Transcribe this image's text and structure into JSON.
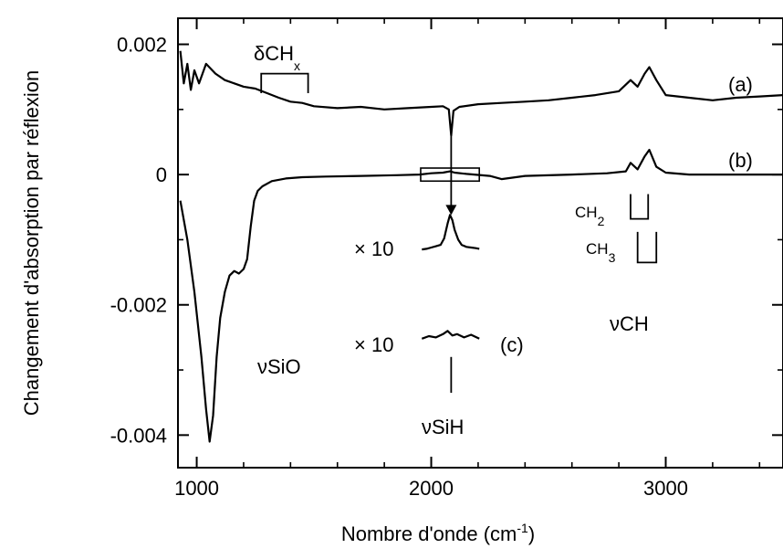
{
  "chart_data": {
    "type": "line",
    "xlabel": "Nombre d'onde (cm",
    "xlabel_sup": "-1",
    "xlabel_end": ")",
    "ylabel": "Changement d'absorption par réflexion",
    "xlim": [
      920,
      3500
    ],
    "ylim": [
      -0.0045,
      0.0024
    ],
    "xticks": [
      1000,
      2000,
      3000
    ],
    "xtick_labels": [
      "1000",
      "2000",
      "3000"
    ],
    "yticks": [
      0.002,
      0,
      -0.002,
      -0.004
    ],
    "ytick_labels": [
      "0.002",
      "0",
      "-0.002",
      "-0.004"
    ],
    "grid": false,
    "series": [
      {
        "name": "(a)",
        "x": [
          930,
          945,
          960,
          975,
          990,
          1010,
          1040,
          1080,
          1120,
          1160,
          1200,
          1250,
          1300,
          1350,
          1400,
          1450,
          1500,
          1600,
          1700,
          1800,
          1900,
          2000,
          2050,
          2075,
          2085,
          2095,
          2120,
          2200,
          2300,
          2400,
          2500,
          2600,
          2700,
          2800,
          2850,
          2880,
          2910,
          2930,
          2960,
          3000,
          3100,
          3200,
          3300,
          3400,
          3500
        ],
        "y": [
          0.0019,
          0.0014,
          0.0017,
          0.0013,
          0.0016,
          0.0014,
          0.0017,
          0.00155,
          0.00145,
          0.0014,
          0.00135,
          0.00132,
          0.00125,
          0.00118,
          0.00112,
          0.0011,
          0.00105,
          0.00102,
          0.00104,
          0.001,
          0.00102,
          0.00104,
          0.00105,
          0.001,
          0.0006,
          0.00098,
          0.00104,
          0.00108,
          0.0011,
          0.00112,
          0.00114,
          0.00118,
          0.00122,
          0.00128,
          0.00145,
          0.00135,
          0.00155,
          0.00165,
          0.00145,
          0.00122,
          0.00118,
          0.00114,
          0.00118,
          0.0012,
          0.00122
        ]
      },
      {
        "name": "(b)",
        "x": [
          930,
          960,
          990,
          1020,
          1040,
          1055,
          1070,
          1085,
          1100,
          1120,
          1140,
          1160,
          1180,
          1200,
          1215,
          1230,
          1245,
          1260,
          1280,
          1320,
          1380,
          1450,
          1550,
          1700,
          1850,
          1950,
          2000,
          2050,
          2080,
          2100,
          2150,
          2250,
          2300,
          2400,
          2600,
          2750,
          2830,
          2850,
          2880,
          2910,
          2930,
          2960,
          3000,
          3100,
          3300,
          3500
        ],
        "y": [
          -0.0004,
          -0.001,
          -0.0018,
          -0.0028,
          -0.0036,
          -0.0041,
          -0.0037,
          -0.0028,
          -0.0022,
          -0.0018,
          -0.00155,
          -0.00148,
          -0.00152,
          -0.00145,
          -0.0013,
          -0.0008,
          -0.0004,
          -0.00025,
          -0.00018,
          -0.0001,
          -6e-05,
          -4e-05,
          -3e-05,
          -2e-05,
          -1e-05,
          0.0,
          2e-05,
          3e-05,
          5e-05,
          3e-05,
          1e-05,
          -2e-05,
          -7e-05,
          -2e-05,
          0.0,
          2e-05,
          5e-05,
          0.00018,
          8e-05,
          0.00028,
          0.00038,
          0.00012,
          3e-05,
          0.0,
          0.0,
          0.0
        ]
      },
      {
        "name": "× 10 inset (b)",
        "x": [
          1960,
          1980,
          2000,
          2020,
          2040,
          2055,
          2070,
          2080,
          2090,
          2100,
          2115,
          2130,
          2150,
          2170,
          2190,
          2205
        ],
        "y": [
          -0.00115,
          -0.00114,
          -0.00112,
          -0.0011,
          -0.00108,
          -0.00098,
          -0.00075,
          -0.00062,
          -0.0007,
          -0.00085,
          -0.001,
          -0.00108,
          -0.00111,
          -0.00112,
          -0.00113,
          -0.00114
        ]
      },
      {
        "name": "× 10 inset (c)",
        "x": [
          1960,
          1990,
          2020,
          2050,
          2070,
          2090,
          2110,
          2140,
          2170,
          2205
        ],
        "y": [
          -0.00252,
          -0.00248,
          -0.0025,
          -0.00245,
          -0.0024,
          -0.00247,
          -0.00245,
          -0.0025,
          -0.00246,
          -0.00252
        ]
      }
    ],
    "annotations": {
      "curve_a": "(a)",
      "curve_b": "(b)",
      "curve_c": "(c)",
      "delta_ch": "δCH",
      "delta_ch_sub": "x",
      "times10_top": "× 10",
      "times10_bottom": "× 10",
      "nu_sio": "νSiO",
      "nu_sih": "νSiH",
      "nu_ch": "νCH",
      "ch2": "CH",
      "ch2_sub": "2",
      "ch3": "CH",
      "ch3_sub": "3"
    }
  }
}
